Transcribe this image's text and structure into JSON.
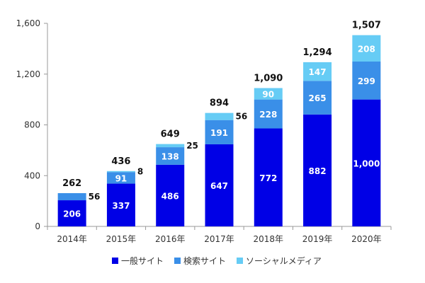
{
  "chart_data": {
    "type": "bar",
    "stacked": true,
    "categories": [
      "2014年",
      "2015年",
      "2016年",
      "2017年",
      "2018年",
      "2019年",
      "2020年"
    ],
    "series": [
      {
        "name": "一般サイト",
        "color": "#0000e6",
        "values": [
          206,
          337,
          486,
          647,
          772,
          882,
          1000
        ],
        "labels": [
          "206",
          "337",
          "486",
          "647",
          "772",
          "882",
          "1,000"
        ]
      },
      {
        "name": "検索サイト",
        "color": "#3a8fe8",
        "values": [
          56,
          91,
          138,
          191,
          228,
          265,
          299
        ],
        "labels": [
          "56",
          "91",
          "138",
          "191",
          "228",
          "265",
          "299"
        ]
      },
      {
        "name": "ソーシャルメディア",
        "color": "#66ccf5",
        "values": [
          0,
          8,
          25,
          56,
          90,
          147,
          208
        ],
        "labels": [
          "",
          "8",
          "25",
          "56",
          "90",
          "147",
          "208"
        ]
      }
    ],
    "totals": [
      "262",
      "436",
      "649",
      "894",
      "1,090",
      "1,294",
      "1,507"
    ],
    "yticks": [
      0,
      400,
      800,
      1200,
      1600
    ],
    "ytick_labels": [
      "0",
      "400",
      "800",
      "1,200",
      "1,600"
    ],
    "ylim": [
      0,
      1600
    ],
    "title": "",
    "xlabel": "",
    "ylabel": "",
    "legend_position": "bottom"
  }
}
